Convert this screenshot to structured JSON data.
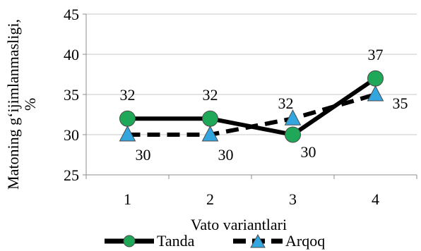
{
  "chart_data": {
    "type": "line",
    "categories": [
      "1",
      "2",
      "3",
      "4"
    ],
    "ylabel_lines": [
      "Matoning g‘ijimlanmasligi,",
      "%"
    ],
    "xlabel": "Vato variantlari",
    "ylim": [
      25,
      45
    ],
    "ytick_values": [
      25,
      30,
      35,
      40,
      45
    ],
    "ytick_labels": [
      "25",
      "30",
      "35",
      "40",
      "45"
    ],
    "grid": "horizontal",
    "legend_position": "bottom",
    "series": [
      {
        "name": "Tanda",
        "values": [
          32,
          32,
          30,
          37
        ],
        "labels": [
          "32",
          "32",
          "30",
          "37"
        ],
        "color": "#000000",
        "line_style": "solid",
        "marker": "circle",
        "marker_color": "#1fa858"
      },
      {
        "name": "Arqoq",
        "values": [
          30,
          30,
          32,
          35
        ],
        "labels": [
          "30",
          "30",
          "32",
          "35"
        ],
        "color": "#000000",
        "line_style": "dashed",
        "marker": "triangle",
        "marker_color": "#33a6e0"
      }
    ]
  }
}
